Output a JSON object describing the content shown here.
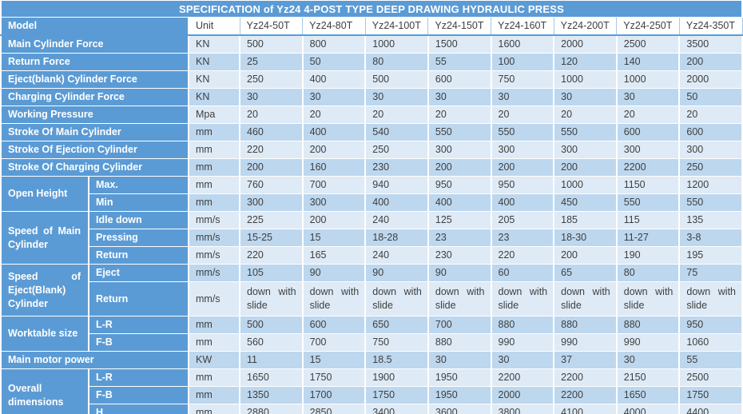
{
  "title": "SPECIFICATION of Yz24 4-POST TYPE DEEP DRAWING HYDRAULIC PRESS",
  "header": {
    "model_label": "Model",
    "unit_label": "Unit",
    "models": [
      "Yz24-50T",
      "Yz24-80T",
      "Yz24-100T",
      "Yz24-150T",
      "Yz24-160T",
      "Yz24-200T",
      "Yz24-250T",
      "Yz24-350T"
    ]
  },
  "rows": [
    {
      "label": "Main Cylinder Force",
      "unit": "KN",
      "values": [
        "500",
        "800",
        "1000",
        "1500",
        "1600",
        "2000",
        "2500",
        "3500"
      ]
    },
    {
      "label": "Return Force",
      "unit": "KN",
      "values": [
        "25",
        "50",
        "80",
        "55",
        "100",
        "120",
        "140",
        "200"
      ]
    },
    {
      "label": "Eject(blank) Cylinder Force",
      "unit": "KN",
      "values": [
        "250",
        "400",
        "500",
        "600",
        "750",
        "1000",
        "1000",
        "2000"
      ]
    },
    {
      "label": "Charging Cylinder Force",
      "unit": "KN",
      "values": [
        "30",
        "30",
        "30",
        "30",
        "30",
        "30",
        "30",
        "50"
      ]
    },
    {
      "label": "Working Pressure",
      "unit": "Mpa",
      "values": [
        "20",
        "20",
        "20",
        "20",
        "20",
        "20",
        "20",
        "20"
      ]
    },
    {
      "label": "Stroke Of Main Cylinder",
      "unit": "mm",
      "values": [
        "460",
        "400",
        "540",
        "550",
        "550",
        "550",
        "600",
        "600"
      ]
    },
    {
      "label": "Stroke Of Ejection Cylinder",
      "unit": "mm",
      "values": [
        "220",
        "200",
        "250",
        "300",
        "300",
        "300",
        "300",
        "300"
      ]
    },
    {
      "label": "Stroke Of Charging Cylinder",
      "unit": "mm",
      "values": [
        "200",
        "160",
        "230",
        "200",
        "200",
        "200",
        "2200",
        "250"
      ]
    },
    {
      "group": "Open Height",
      "groupSpan": 2,
      "sub": "Max.",
      "unit": "mm",
      "values": [
        "760",
        "700",
        "940",
        "950",
        "950",
        "1000",
        "1150",
        "1200"
      ]
    },
    {
      "inGroup": true,
      "sub": "Min",
      "unit": "mm",
      "values": [
        "300",
        "300",
        "400",
        "400",
        "400",
        "450",
        "550",
        "550"
      ]
    },
    {
      "group": "Speed of Main Cylinder",
      "groupSpan": 3,
      "sub": "Idle down",
      "unit": "mm/s",
      "values": [
        "225",
        "200",
        "240",
        "125",
        "205",
        "185",
        "115",
        "135"
      ]
    },
    {
      "inGroup": true,
      "sub": "Pressing",
      "unit": "mm/s",
      "values": [
        "15-25",
        "15",
        "18-28",
        "23",
        "23",
        "18-30",
        "11-27",
        "3-8"
      ]
    },
    {
      "inGroup": true,
      "sub": "Return",
      "unit": "mm/s",
      "values": [
        "220",
        "165",
        "240",
        "230",
        "220",
        "200",
        "190",
        "195"
      ]
    },
    {
      "group": "Speed of Eject(Blank) Cylinder",
      "groupSpan": 2,
      "sub": "Eject",
      "unit": "mm/s",
      "values": [
        "105",
        "90",
        "90",
        "90",
        "60",
        "65",
        "80",
        "75"
      ]
    },
    {
      "inGroup": true,
      "tall": true,
      "sub": "Return",
      "unit": "mm/s",
      "values": [
        "down with slide",
        "down with slide",
        "down with slide",
        "down with slide",
        "down with slide",
        "down with slide",
        "down with slide",
        "down with slide"
      ]
    },
    {
      "group": "Worktable size",
      "groupSpan": 2,
      "sub": "L-R",
      "unit": "mm",
      "values": [
        "500",
        "600",
        "650",
        "700",
        "880",
        "880",
        "880",
        "950"
      ]
    },
    {
      "inGroup": true,
      "sub": "F-B",
      "unit": "mm",
      "values": [
        "560",
        "700",
        "750",
        "880",
        "990",
        "990",
        "990",
        "1060"
      ]
    },
    {
      "label": "Main motor power",
      "unit": "KW",
      "values": [
        "11",
        "15",
        "18.5",
        "30",
        "30",
        "37",
        "30",
        "55"
      ]
    },
    {
      "group": "Overall dimensions",
      "groupSpan": 3,
      "sub": "L-R",
      "unit": "mm",
      "values": [
        "1650",
        "1750",
        "1900",
        "1950",
        "2200",
        "2200",
        "2150",
        "2500"
      ]
    },
    {
      "inGroup": true,
      "sub": "F-B",
      "unit": "mm",
      "values": [
        "1350",
        "1700",
        "1750",
        "1950",
        "2000",
        "2200",
        "1650",
        "1750"
      ]
    },
    {
      "inGroup": true,
      "sub": "H",
      "unit": "mm",
      "values": [
        "2880",
        "2850",
        "3400",
        "3600",
        "3800",
        "4100",
        "4000",
        "4400"
      ]
    }
  ],
  "colors": {
    "accent_blue": "#5B9BD5",
    "stripe_light": "#DEEAF6",
    "stripe_dark": "#BDD7EE",
    "header_background": "#FFFFFF",
    "data_text": "#3F3F3F",
    "label_text": "#FFFFFF"
  }
}
